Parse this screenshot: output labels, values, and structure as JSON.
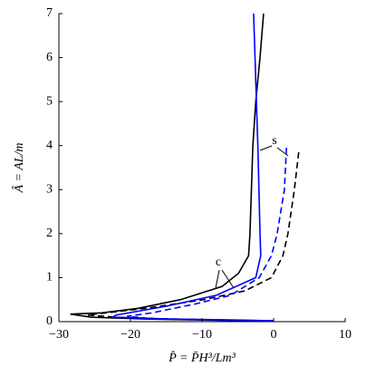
{
  "chart_data": {
    "type": "line",
    "xlabel": "P̂ = P̄H³/Lm³",
    "ylabel": "Â = AL/m",
    "annotations": [
      "c",
      "s"
    ],
    "xlim": [
      -30,
      10
    ],
    "ylim": [
      0,
      7
    ],
    "xticks": [
      {
        "value": -30,
        "label": "−30"
      },
      {
        "value": -20,
        "label": "−20"
      },
      {
        "value": -10,
        "label": "−10"
      },
      0,
      10
    ],
    "yticks": [
      0,
      1,
      2,
      3,
      4,
      5,
      6,
      7
    ],
    "series": [
      {
        "color": "#000000",
        "dash": false,
        "x": [
          -1.4,
          -1.9,
          -2.5,
          -2.9,
          -3.3,
          -3.5,
          -4.9,
          -7.2,
          -13,
          -19,
          -24,
          -28.4,
          -25.5,
          -18,
          -8,
          0
        ],
        "y": [
          7,
          6,
          5,
          4,
          2,
          1.5,
          1.1,
          0.8,
          0.5,
          0.3,
          0.2,
          0.17,
          0.1,
          0.06,
          0.03,
          0.01
        ]
      },
      {
        "color": "#000000",
        "dash": true,
        "x": [
          3.5,
          2.9,
          2.0,
          1.3,
          -0.3,
          -4,
          -9.7,
          -18,
          -26,
          -22,
          -15,
          -6,
          0
        ],
        "y": [
          3.85,
          3,
          2,
          1.5,
          1,
          0.7,
          0.5,
          0.3,
          0.15,
          0.1,
          0.06,
          0.03,
          0.02
        ]
      },
      {
        "color": "#0000ff",
        "dash": false,
        "x": [
          -2.8,
          -2.6,
          -2.4,
          -2.2,
          -1.9,
          -1.8,
          -2.5,
          -8,
          -15,
          -22,
          -22.5,
          -15,
          -6,
          0
        ],
        "y": [
          7,
          6,
          5,
          4,
          2,
          1.5,
          1,
          0.6,
          0.35,
          0.15,
          0.1,
          0.06,
          0.04,
          0.02
        ]
      },
      {
        "color": "#0000ff",
        "dash": true,
        "x": [
          1.8,
          1.5,
          0.5,
          -0.3,
          -2,
          -6,
          -11,
          -17,
          -20.5,
          -17,
          -8,
          0
        ],
        "y": [
          3.95,
          3,
          2,
          1.5,
          1,
          0.6,
          0.4,
          0.2,
          0.12,
          0.07,
          0.04,
          0.02
        ]
      }
    ]
  }
}
